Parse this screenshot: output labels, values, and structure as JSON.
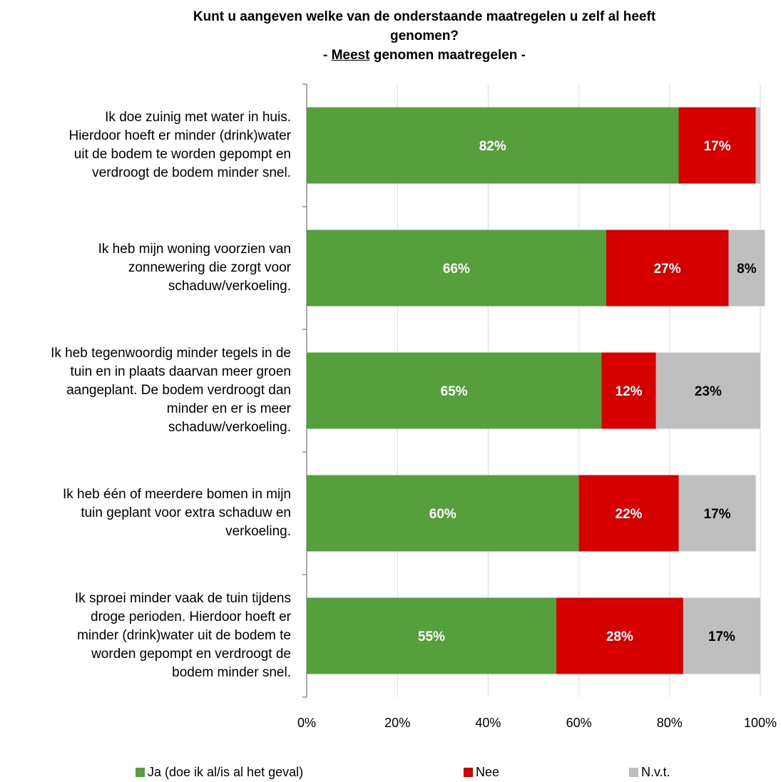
{
  "chart_data": {
    "type": "bar",
    "orientation": "horizontal",
    "stacked": true,
    "title_lines": [
      "Kunt u aangeven welke van de onderstaande maatregelen u zelf al heeft",
      "genomen?"
    ],
    "subtitle_prefix": "- ",
    "subtitle_underlined": "Meest",
    "subtitle_rest": " genomen maatregelen -",
    "categories": [
      "Ik doe zuinig met water in huis. Hierdoor hoeft er minder (drink)water uit de bodem te worden gepompt en verdroogt de bodem minder snel.",
      "Ik heb mijn woning voorzien van zonnewering die zorgt voor schaduw/verkoeling.",
      "Ik heb tegenwoordig minder tegels in de tuin en in plaats daarvan meer groen aangeplant. De bodem verdroogt dan minder en er is meer schaduw/verkoeling.",
      "Ik heb één of meerdere bomen in mijn tuin geplant voor extra schaduw en verkoeling.",
      "Ik sproei minder vaak de tuin tijdens droge perioden. Hierdoor hoeft er minder (drink)water uit de bodem te worden gepompt en verdroogt de bodem minder snel."
    ],
    "category_lines": [
      [
        "Ik doe zuinig met water in huis.",
        "Hierdoor hoeft er minder (drink)water",
        "uit de bodem te worden gepompt en",
        "verdroogt de bodem minder snel."
      ],
      [
        "Ik heb mijn woning voorzien van",
        "zonnewering die zorgt voor",
        "schaduw/verkoeling."
      ],
      [
        "Ik heb tegenwoordig minder tegels in de",
        "tuin en in plaats daarvan meer groen",
        "aangeplant. De bodem verdroogt dan",
        "minder en er is meer",
        "schaduw/verkoeling."
      ],
      [
        "Ik heb één of meerdere bomen in mijn",
        "tuin geplant voor extra schaduw en",
        "verkoeling."
      ],
      [
        "Ik sproei minder vaak de tuin tijdens",
        "droge perioden. Hierdoor hoeft er",
        "minder (drink)water uit de bodem te",
        "worden gepompt en verdroogt de",
        "bodem minder snel."
      ]
    ],
    "series": [
      {
        "name": "Ja (doe ik al/is al het geval)",
        "color": "#55A03C",
        "label_color": "#FFFFFF",
        "values": [
          82,
          66,
          65,
          60,
          55
        ],
        "labels": [
          "82%",
          "66%",
          "65%",
          "60%",
          "55%"
        ]
      },
      {
        "name": "Nee",
        "color": "#D60000",
        "label_color": "#FFFFFF",
        "values": [
          17,
          27,
          12,
          22,
          28
        ],
        "labels": [
          "17%",
          "27%",
          "12%",
          "22%",
          "28%"
        ]
      },
      {
        "name": "N.v.t.",
        "color": "#BFBFBF",
        "label_color": "#000000",
        "values": [
          1,
          8,
          23,
          17,
          17
        ],
        "labels": [
          "",
          "8%",
          "23%",
          "17%",
          "17%"
        ]
      }
    ],
    "xlim": [
      0,
      100
    ],
    "x_ticks": [
      "0%",
      "20%",
      "40%",
      "60%",
      "80%",
      "100%"
    ],
    "grid": true,
    "legend_position": "bottom"
  }
}
